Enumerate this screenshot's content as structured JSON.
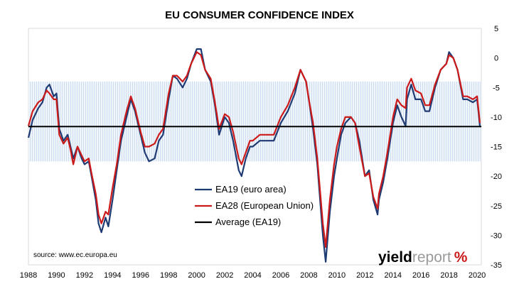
{
  "chart_data": {
    "type": "line",
    "title": "EU CONSUMER CONFIDENCE INDEX",
    "xlabel": "",
    "ylabel": "",
    "xlim": [
      1988,
      2020.3
    ],
    "ylim": [
      -35,
      5
    ],
    "x_ticks": [
      "1988",
      "1990",
      "1992",
      "1994",
      "1996",
      "1998",
      "2000",
      "2002",
      "2004",
      "2006",
      "2008",
      "2010",
      "2012",
      "2014",
      "2016",
      "2018",
      "2020"
    ],
    "y_ticks": [
      "5",
      "0",
      "-5",
      "-10",
      "-15",
      "-20",
      "-25",
      "-30",
      "-35"
    ],
    "legend_position": "center",
    "band": {
      "from": -17.5,
      "to": -4
    },
    "average": -11.6,
    "series": [
      {
        "name": "EA19 (euro area)",
        "color": "#1f3b73",
        "points": [
          [
            1988.0,
            -13.5
          ],
          [
            1988.3,
            -10.5
          ],
          [
            1988.7,
            -8.5
          ],
          [
            1989.0,
            -7.5
          ],
          [
            1989.3,
            -5
          ],
          [
            1989.5,
            -4.5
          ],
          [
            1989.8,
            -6.5
          ],
          [
            1990.0,
            -6
          ],
          [
            1990.2,
            -12
          ],
          [
            1990.5,
            -14
          ],
          [
            1990.8,
            -13
          ],
          [
            1991.0,
            -15
          ],
          [
            1991.2,
            -17
          ],
          [
            1991.5,
            -15
          ],
          [
            1991.8,
            -17
          ],
          [
            1992.0,
            -18
          ],
          [
            1992.3,
            -17.5
          ],
          [
            1992.5,
            -20
          ],
          [
            1992.8,
            -24
          ],
          [
            1993.0,
            -28
          ],
          [
            1993.2,
            -29.5
          ],
          [
            1993.5,
            -27
          ],
          [
            1993.7,
            -28.5
          ],
          [
            1994.0,
            -24
          ],
          [
            1994.3,
            -19
          ],
          [
            1994.6,
            -14
          ],
          [
            1995.0,
            -10
          ],
          [
            1995.3,
            -7
          ],
          [
            1995.6,
            -9
          ],
          [
            1996.0,
            -13
          ],
          [
            1996.3,
            -16
          ],
          [
            1996.6,
            -17.5
          ],
          [
            1997.0,
            -17
          ],
          [
            1997.3,
            -14
          ],
          [
            1997.6,
            -13
          ],
          [
            1998.0,
            -7
          ],
          [
            1998.3,
            -3
          ],
          [
            1998.6,
            -3.5
          ],
          [
            1999.0,
            -5
          ],
          [
            1999.3,
            -3.5
          ],
          [
            1999.6,
            -1
          ],
          [
            2000.0,
            1.5
          ],
          [
            2000.3,
            1.5
          ],
          [
            2000.6,
            -2
          ],
          [
            2001.0,
            -4
          ],
          [
            2001.3,
            -8
          ],
          [
            2001.6,
            -13
          ],
          [
            2002.0,
            -10
          ],
          [
            2002.3,
            -11
          ],
          [
            2002.6,
            -14
          ],
          [
            2003.0,
            -19
          ],
          [
            2003.2,
            -20
          ],
          [
            2003.5,
            -17
          ],
          [
            2003.8,
            -15
          ],
          [
            2004.0,
            -15
          ],
          [
            2004.5,
            -14
          ],
          [
            2005.0,
            -14
          ],
          [
            2005.5,
            -14
          ],
          [
            2006.0,
            -11
          ],
          [
            2006.5,
            -9
          ],
          [
            2007.0,
            -6
          ],
          [
            2007.4,
            -2
          ],
          [
            2007.8,
            -4
          ],
          [
            2008.0,
            -7
          ],
          [
            2008.3,
            -12
          ],
          [
            2008.6,
            -18
          ],
          [
            2009.0,
            -30
          ],
          [
            2009.2,
            -34.5
          ],
          [
            2009.5,
            -26
          ],
          [
            2009.8,
            -20
          ],
          [
            2010.0,
            -17
          ],
          [
            2010.3,
            -13
          ],
          [
            2010.6,
            -11
          ],
          [
            2011.0,
            -10
          ],
          [
            2011.3,
            -11
          ],
          [
            2011.6,
            -14
          ],
          [
            2012.0,
            -20
          ],
          [
            2012.3,
            -19
          ],
          [
            2012.6,
            -24
          ],
          [
            2012.9,
            -26.5
          ],
          [
            2013.0,
            -24
          ],
          [
            2013.3,
            -21
          ],
          [
            2013.6,
            -17
          ],
          [
            2014.0,
            -11
          ],
          [
            2014.3,
            -8
          ],
          [
            2014.6,
            -10
          ],
          [
            2014.9,
            -11.5
          ],
          [
            2015.0,
            -7
          ],
          [
            2015.3,
            -4.5
          ],
          [
            2015.6,
            -7
          ],
          [
            2016.0,
            -7
          ],
          [
            2016.3,
            -9
          ],
          [
            2016.6,
            -9
          ],
          [
            2017.0,
            -5
          ],
          [
            2017.4,
            -2
          ],
          [
            2017.8,
            -1
          ],
          [
            2018.0,
            1
          ],
          [
            2018.3,
            0
          ],
          [
            2018.6,
            -2
          ],
          [
            2019.0,
            -7
          ],
          [
            2019.3,
            -7
          ],
          [
            2019.7,
            -7.5
          ],
          [
            2020.0,
            -7
          ],
          [
            2020.2,
            -11.5
          ]
        ]
      },
      {
        "name": "EA28 (European Union)",
        "color": "#cc1a1a",
        "points": [
          [
            1988.0,
            -11.5
          ],
          [
            1988.3,
            -9
          ],
          [
            1988.7,
            -7.5
          ],
          [
            1989.0,
            -7
          ],
          [
            1989.3,
            -5.5
          ],
          [
            1989.5,
            -6
          ],
          [
            1989.8,
            -7
          ],
          [
            1990.0,
            -7
          ],
          [
            1990.2,
            -13
          ],
          [
            1990.5,
            -14.5
          ],
          [
            1990.8,
            -13.5
          ],
          [
            1991.0,
            -15.5
          ],
          [
            1991.2,
            -18
          ],
          [
            1991.5,
            -15
          ],
          [
            1991.8,
            -16.5
          ],
          [
            1992.0,
            -17.5
          ],
          [
            1992.3,
            -17
          ],
          [
            1992.5,
            -19.5
          ],
          [
            1992.8,
            -23
          ],
          [
            1993.0,
            -26.5
          ],
          [
            1993.2,
            -28
          ],
          [
            1993.5,
            -26
          ],
          [
            1993.7,
            -26.5
          ],
          [
            1994.0,
            -22
          ],
          [
            1994.3,
            -18
          ],
          [
            1994.6,
            -13
          ],
          [
            1995.0,
            -9
          ],
          [
            1995.3,
            -6.5
          ],
          [
            1995.6,
            -8.5
          ],
          [
            1996.0,
            -12.5
          ],
          [
            1996.3,
            -15
          ],
          [
            1996.6,
            -15
          ],
          [
            1997.0,
            -14.5
          ],
          [
            1997.3,
            -13
          ],
          [
            1997.6,
            -12
          ],
          [
            1998.0,
            -6
          ],
          [
            1998.3,
            -3
          ],
          [
            1998.6,
            -3
          ],
          [
            1999.0,
            -4
          ],
          [
            1999.3,
            -3
          ],
          [
            1999.6,
            -1
          ],
          [
            2000.0,
            1
          ],
          [
            2000.3,
            0.5
          ],
          [
            2000.6,
            -2
          ],
          [
            2001.0,
            -3.5
          ],
          [
            2001.3,
            -7.5
          ],
          [
            2001.6,
            -12
          ],
          [
            2002.0,
            -9.5
          ],
          [
            2002.3,
            -10
          ],
          [
            2002.6,
            -12.5
          ],
          [
            2003.0,
            -17
          ],
          [
            2003.2,
            -18
          ],
          [
            2003.5,
            -16
          ],
          [
            2003.8,
            -14
          ],
          [
            2004.0,
            -14
          ],
          [
            2004.5,
            -13
          ],
          [
            2005.0,
            -13
          ],
          [
            2005.5,
            -13
          ],
          [
            2006.0,
            -10
          ],
          [
            2006.5,
            -8
          ],
          [
            2007.0,
            -5
          ],
          [
            2007.4,
            -2
          ],
          [
            2007.8,
            -4
          ],
          [
            2008.0,
            -7
          ],
          [
            2008.3,
            -11
          ],
          [
            2008.6,
            -17
          ],
          [
            2009.0,
            -28
          ],
          [
            2009.2,
            -32
          ],
          [
            2009.5,
            -24
          ],
          [
            2009.8,
            -18
          ],
          [
            2010.0,
            -15
          ],
          [
            2010.3,
            -12
          ],
          [
            2010.6,
            -10
          ],
          [
            2011.0,
            -10
          ],
          [
            2011.3,
            -11
          ],
          [
            2011.6,
            -15
          ],
          [
            2012.0,
            -20
          ],
          [
            2012.3,
            -19.5
          ],
          [
            2012.6,
            -23.5
          ],
          [
            2012.9,
            -25.5
          ],
          [
            2013.0,
            -23
          ],
          [
            2013.3,
            -20
          ],
          [
            2013.6,
            -16
          ],
          [
            2014.0,
            -10
          ],
          [
            2014.3,
            -7
          ],
          [
            2014.6,
            -8
          ],
          [
            2014.9,
            -8.5
          ],
          [
            2015.0,
            -5
          ],
          [
            2015.3,
            -3.5
          ],
          [
            2015.6,
            -5.5
          ],
          [
            2016.0,
            -6
          ],
          [
            2016.3,
            -8
          ],
          [
            2016.6,
            -8
          ],
          [
            2017.0,
            -4.5
          ],
          [
            2017.4,
            -2
          ],
          [
            2017.8,
            -1
          ],
          [
            2018.0,
            0.5
          ],
          [
            2018.3,
            0
          ],
          [
            2018.6,
            -2
          ],
          [
            2019.0,
            -6.5
          ],
          [
            2019.3,
            -6.5
          ],
          [
            2019.7,
            -7
          ],
          [
            2020.0,
            -6.5
          ],
          [
            2020.2,
            -11
          ]
        ]
      },
      {
        "name": "Average (EA19)",
        "color": "#000000",
        "points": [
          [
            1988.0,
            -11.6
          ],
          [
            2020.3,
            -11.6
          ]
        ]
      }
    ]
  },
  "source_text": "source: www.ec.europa.eu",
  "brand": {
    "name": "yieldreport",
    "part1": "yield",
    "part2": "report",
    "symbol": "%",
    "color1": "#000000",
    "color2": "#9a9a9a",
    "symbol_color": "#cc1a1a"
  }
}
